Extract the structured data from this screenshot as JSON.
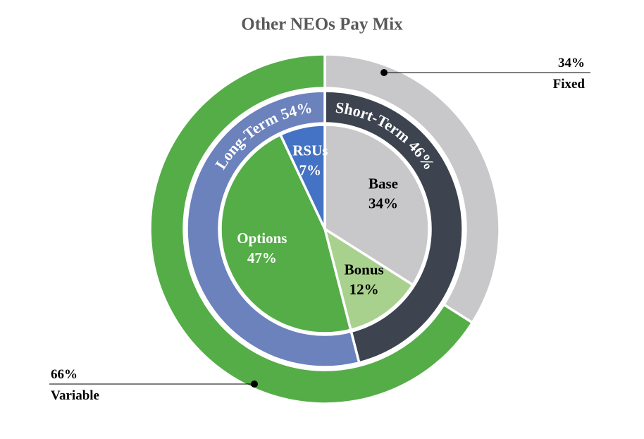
{
  "chart_data": {
    "type": "donut",
    "title": "Other NEOs Pay Mix",
    "rings": [
      {
        "categories": [
          "Fixed",
          "Variable"
        ],
        "values": [
          34,
          66
        ],
        "value_labels": [
          "34%",
          "66%"
        ],
        "colors": [
          "#c8c8ca",
          "#55ad47"
        ],
        "label_position": "outside"
      },
      {
        "categories": [
          "Short-Term",
          "Long-Term"
        ],
        "values": [
          46,
          54
        ],
        "value_labels": [
          "46%",
          "54%"
        ],
        "colors": [
          "#3d4450",
          "#6b82bc"
        ],
        "label_position": "curved"
      },
      {
        "categories": [
          "Base",
          "Bonus",
          "Options",
          "RSUs"
        ],
        "values": [
          34,
          12,
          47,
          7
        ],
        "value_labels": [
          "34%",
          "12%",
          "47%",
          "7%"
        ],
        "colors": [
          "#c8c8ca",
          "#a9d18e",
          "#55ad47",
          "#4472c4"
        ],
        "label_position": "inside"
      }
    ]
  }
}
